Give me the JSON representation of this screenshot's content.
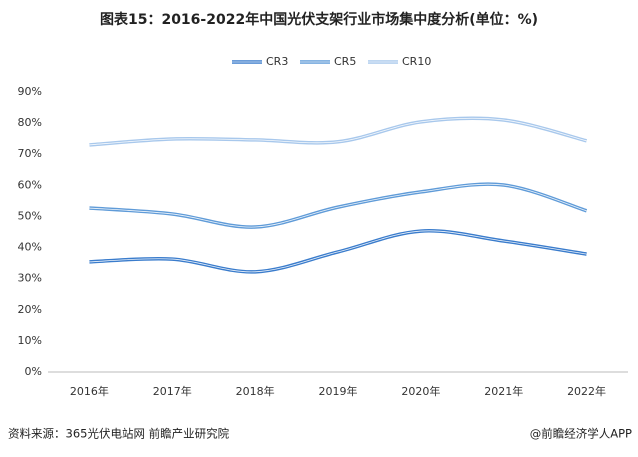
{
  "chart_data": {
    "type": "line",
    "title": "图表15：2016-2022年中国光伏支架行业市场集中度分析(单位：%)",
    "categories": [
      "2016年",
      "2017年",
      "2018年",
      "2019年",
      "2020年",
      "2021年",
      "2022年"
    ],
    "series": [
      {
        "name": "CR3",
        "color": "#3a7ccc",
        "values": [
          35.4,
          36.3,
          32.2,
          38.6,
          45.3,
          42.1,
          37.9
        ]
      },
      {
        "name": "CR5",
        "color": "#5f9bd8",
        "values": [
          52.7,
          50.8,
          46.6,
          53,
          57.9,
          60.1,
          51.8
        ]
      },
      {
        "name": "CR10",
        "color": "#a8c8ec",
        "values": [
          73,
          74.9,
          74.6,
          74,
          80.4,
          81,
          74.3
        ]
      }
    ],
    "ylim": [
      0,
      90
    ],
    "yticks": [
      {
        "value": 0,
        "label": "0%"
      },
      {
        "value": 10,
        "label": "10%"
      },
      {
        "value": 20,
        "label": "20%"
      },
      {
        "value": 30,
        "label": "30%"
      },
      {
        "value": 40,
        "label": "40%"
      },
      {
        "value": 50,
        "label": "50%"
      },
      {
        "value": 60,
        "label": "60%"
      },
      {
        "value": 70,
        "label": "70%"
      },
      {
        "value": 80,
        "label": "80%"
      },
      {
        "value": 90,
        "label": "90%"
      }
    ],
    "grid": false,
    "legend": "top",
    "source": "资料来源：365光伏电站网 前瞻产业研究院",
    "credit": "@前瞻经济学人APP"
  }
}
